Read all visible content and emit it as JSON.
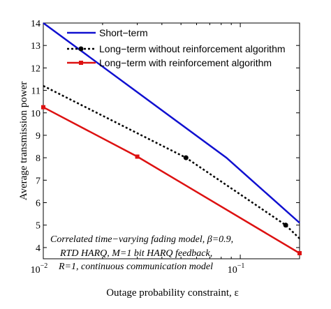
{
  "chart_data": {
    "type": "line",
    "title": "",
    "xlabel": "Outage probability constraint, ε",
    "ylabel": "Average transmission power",
    "xscale": "log",
    "xlim": [
      0.01,
      0.2
    ],
    "ylim": [
      3.5,
      14
    ],
    "x_ticks": [
      0.01,
      0.1
    ],
    "x_tick_labels": [
      {
        "base": "10",
        "exp": "−2"
      },
      {
        "base": "10",
        "exp": "−1"
      }
    ],
    "y_ticks": [
      4,
      5,
      6,
      7,
      8,
      9,
      10,
      11,
      12,
      13,
      14
    ],
    "grid": false,
    "legend_position": "top",
    "series": [
      {
        "name": "Short−term",
        "color": "#1010d0",
        "line_style": "solid",
        "marker": "none",
        "x": [
          0.01,
          0.085,
          0.2
        ],
        "y": [
          14,
          8,
          5.1
        ]
      },
      {
        "name": "Long−term without reinforcement algorithm",
        "color": "#000000",
        "line_style": "dotted",
        "marker": "circle",
        "x": [
          0.01,
          0.053,
          0.17,
          0.2
        ],
        "y": [
          11.2,
          8.0,
          5.0,
          4.4
        ],
        "marker_x": [
          0.053,
          0.17
        ],
        "marker_y": [
          8.0,
          5.0
        ]
      },
      {
        "name": "Long−term with reinforcement algorithm",
        "color": "#dd1111",
        "line_style": "solid",
        "marker": "square",
        "x": [
          0.01,
          0.03,
          0.2
        ],
        "y": [
          10.25,
          8.05,
          3.75
        ],
        "marker_x": [
          0.01,
          0.03,
          0.2
        ],
        "marker_y": [
          10.25,
          8.05,
          3.75
        ]
      }
    ],
    "annotation": {
      "line1": "Correlated time−varying fading model, β=0.9,",
      "line2": "RTD HARQ, M=1 bit HARQ feedback,",
      "line3": "R=1, continuous communication model"
    }
  }
}
